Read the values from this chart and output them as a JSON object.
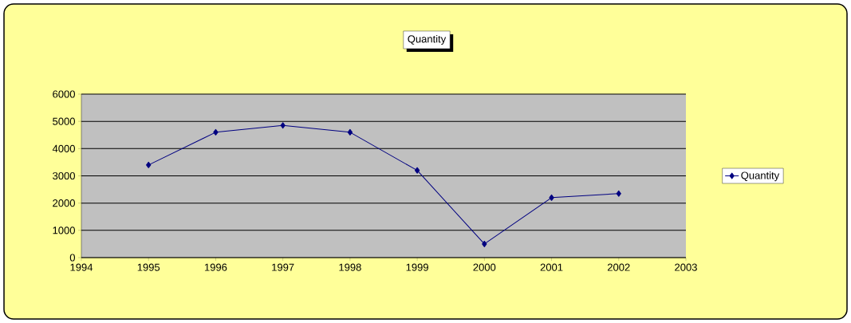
{
  "chart_data": {
    "type": "line",
    "title": "Quantity",
    "x": [
      1995,
      1996,
      1997,
      1998,
      1999,
      2000,
      2001,
      2002
    ],
    "series": [
      {
        "name": "Quantity",
        "color": "#000080",
        "values": [
          3400,
          4600,
          4850,
          4600,
          3200,
          500,
          2200,
          2350
        ]
      }
    ],
    "xlim": [
      1994,
      2003
    ],
    "xticks": [
      1994,
      1995,
      1996,
      1997,
      1998,
      1999,
      2000,
      2001,
      2002,
      2003
    ],
    "ylim": [
      0,
      6000
    ],
    "yticks": [
      0,
      1000,
      2000,
      3000,
      4000,
      5000,
      6000
    ],
    "grid": "y",
    "legend": "right",
    "marker": "diamond",
    "line_style": "solid"
  }
}
